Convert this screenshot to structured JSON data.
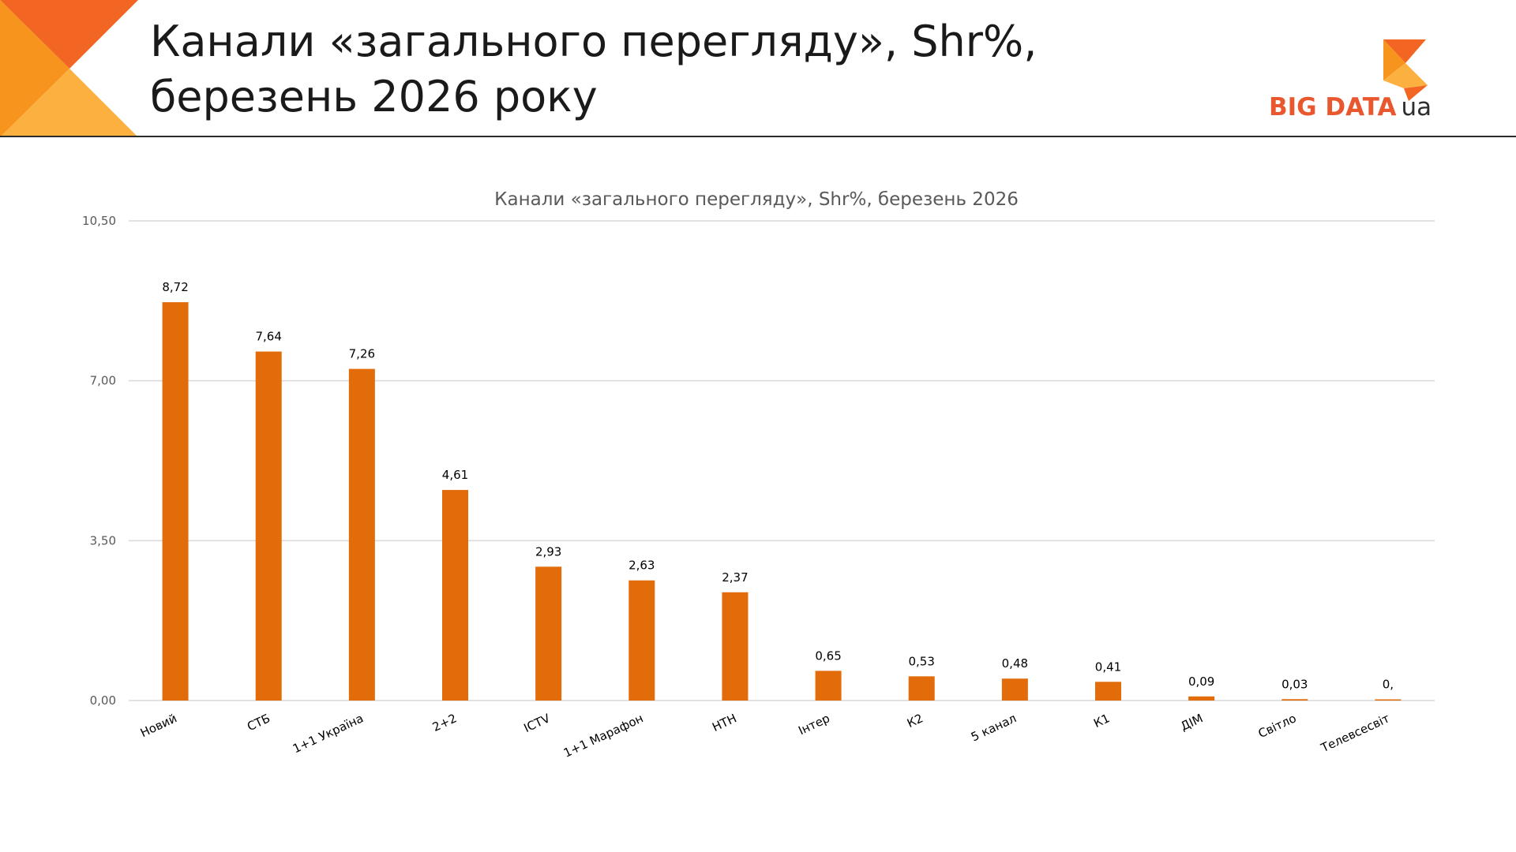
{
  "slide": {
    "title_line1": "Канали «загального перегляду», Shr%,",
    "title_line2": "березень 2026 року"
  },
  "logo": {
    "brand": "BIG DATA",
    "suffix": "ua"
  },
  "colors": {
    "bar": "#e36c0a",
    "grid": "#d9d9d9",
    "axis_text": "#595959",
    "title_text": "#595959",
    "label_text": "#000000",
    "deco_dark": "#f26522",
    "deco_light": "#fbb040"
  },
  "chart_data": {
    "type": "bar",
    "title": "Канали «загального перегляду», Shr%, березень 2026",
    "xlabel": "",
    "ylabel": "",
    "ylim": [
      0,
      10.5
    ],
    "yticks": [
      "0,00",
      "3,50",
      "7,00",
      "10,50"
    ],
    "ytick_values": [
      0,
      3.5,
      7,
      10.5
    ],
    "grid": true,
    "legend": "none",
    "categories": [
      "Новий",
      "СТБ",
      "1+1 Україна",
      "2+2",
      "ICTV",
      "1+1 Марафон",
      "НТН",
      "Інтер",
      "К2",
      "5 канал",
      "К1",
      "ДІМ",
      "Світло",
      "Телевсесвіт"
    ],
    "values": [
      8.72,
      7.64,
      7.26,
      4.61,
      2.93,
      2.63,
      2.37,
      0.65,
      0.53,
      0.48,
      0.41,
      0.09,
      0.03,
      0.004
    ],
    "data_labels": [
      "8,72",
      "7,64",
      "7,26",
      "4,61",
      "2,93",
      "2,63",
      "2,37",
      "0,65",
      "0,53",
      "0,48",
      "0,41",
      "0,09",
      "0,03",
      "0,"
    ]
  }
}
